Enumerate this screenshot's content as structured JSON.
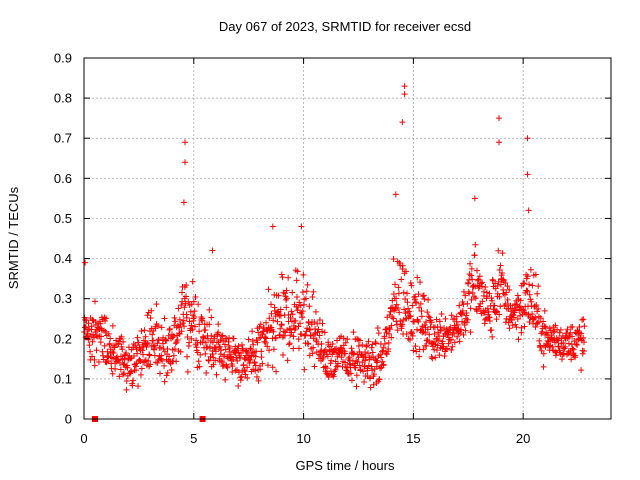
{
  "chart_data": {
    "type": "scatter",
    "title": "Day 067 of 2023, SRMTID for receiver ecsd",
    "xlabel": "GPS time / hours",
    "ylabel": "SRMTID / TECUs",
    "xlim": [
      0,
      24
    ],
    "ylim": [
      0,
      0.9
    ],
    "xticks": [
      0,
      5,
      10,
      15,
      20
    ],
    "xtick_labels": [
      "0",
      "5",
      "10",
      "15",
      "20"
    ],
    "yticks": [
      0,
      0.1,
      0.2,
      0.3,
      0.4,
      0.5,
      0.6,
      0.7,
      0.8,
      0.9
    ],
    "ytick_labels": [
      "0",
      "0.1",
      "0.2",
      "0.3",
      "0.4",
      "0.5",
      "0.6",
      "0.7",
      "0.8",
      "0.9"
    ],
    "grid": true,
    "marker": "plus",
    "color": "#ff0000",
    "series_points": 1400,
    "data_gaps": [
      {
        "x": 0.5,
        "y": 0
      },
      {
        "x": 5.4,
        "y": 0
      }
    ],
    "peaks": [
      {
        "x": 0.05,
        "y": 0.39
      },
      {
        "x": 4.6,
        "y": 0.69
      },
      {
        "x": 4.6,
        "y": 0.64
      },
      {
        "x": 4.55,
        "y": 0.54
      },
      {
        "x": 5.85,
        "y": 0.42
      },
      {
        "x": 8.6,
        "y": 0.48
      },
      {
        "x": 9.9,
        "y": 0.48
      },
      {
        "x": 14.2,
        "y": 0.56
      },
      {
        "x": 14.6,
        "y": 0.83
      },
      {
        "x": 14.6,
        "y": 0.81
      },
      {
        "x": 14.5,
        "y": 0.74
      },
      {
        "x": 17.8,
        "y": 0.55
      },
      {
        "x": 18.9,
        "y": 0.75
      },
      {
        "x": 18.9,
        "y": 0.69
      },
      {
        "x": 20.2,
        "y": 0.7
      },
      {
        "x": 20.2,
        "y": 0.61
      },
      {
        "x": 20.25,
        "y": 0.52
      }
    ],
    "envelope": [
      {
        "x": 0.0,
        "low": 0.12,
        "high": 0.35
      },
      {
        "x": 1.0,
        "low": 0.12,
        "high": 0.26
      },
      {
        "x": 2.0,
        "low": 0.07,
        "high": 0.2
      },
      {
        "x": 3.0,
        "low": 0.1,
        "high": 0.3
      },
      {
        "x": 4.0,
        "low": 0.1,
        "high": 0.25
      },
      {
        "x": 4.6,
        "low": 0.13,
        "high": 0.38
      },
      {
        "x": 5.5,
        "low": 0.1,
        "high": 0.3
      },
      {
        "x": 6.5,
        "low": 0.1,
        "high": 0.24
      },
      {
        "x": 7.5,
        "low": 0.07,
        "high": 0.2
      },
      {
        "x": 8.6,
        "low": 0.1,
        "high": 0.36
      },
      {
        "x": 9.9,
        "low": 0.14,
        "high": 0.4
      },
      {
        "x": 11.0,
        "low": 0.09,
        "high": 0.23
      },
      {
        "x": 12.5,
        "low": 0.07,
        "high": 0.22
      },
      {
        "x": 13.5,
        "low": 0.06,
        "high": 0.22
      },
      {
        "x": 14.3,
        "low": 0.17,
        "high": 0.45
      },
      {
        "x": 15.0,
        "low": 0.15,
        "high": 0.38
      },
      {
        "x": 16.0,
        "low": 0.13,
        "high": 0.27
      },
      {
        "x": 17.0,
        "low": 0.16,
        "high": 0.3
      },
      {
        "x": 17.8,
        "low": 0.22,
        "high": 0.45
      },
      {
        "x": 18.5,
        "low": 0.18,
        "high": 0.33
      },
      {
        "x": 18.9,
        "low": 0.22,
        "high": 0.46
      },
      {
        "x": 19.5,
        "low": 0.2,
        "high": 0.32
      },
      {
        "x": 20.3,
        "low": 0.19,
        "high": 0.42
      },
      {
        "x": 21.0,
        "low": 0.13,
        "high": 0.27
      },
      {
        "x": 22.0,
        "low": 0.14,
        "high": 0.24
      },
      {
        "x": 22.8,
        "low": 0.11,
        "high": 0.28
      }
    ]
  }
}
